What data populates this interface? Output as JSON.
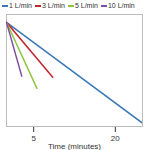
{
  "chart_data": {
    "type": "line",
    "x_label": "Time (minutes)",
    "xlim": [
      0,
      25
    ],
    "xticks": [
      5,
      20
    ],
    "ylim": [
      0,
      100
    ],
    "tick_labels": "x",
    "legend": "top",
    "series": [
      {
        "name": "1 L/min",
        "color": "#3a78b8",
        "x": [
          0,
          25
        ],
        "values": [
          93,
          3
        ]
      },
      {
        "name": "3 L/min",
        "color": "#c0282e",
        "x": [
          0,
          8.5
        ],
        "values": [
          93,
          44
        ]
      },
      {
        "name": "5 L/min",
        "color": "#8dc63f",
        "x": [
          0,
          5.6
        ],
        "values": [
          93,
          34
        ]
      },
      {
        "name": "10 L/min",
        "color": "#7f4f9f",
        "x": [
          0,
          2.8
        ],
        "values": [
          93,
          45
        ]
      }
    ]
  }
}
